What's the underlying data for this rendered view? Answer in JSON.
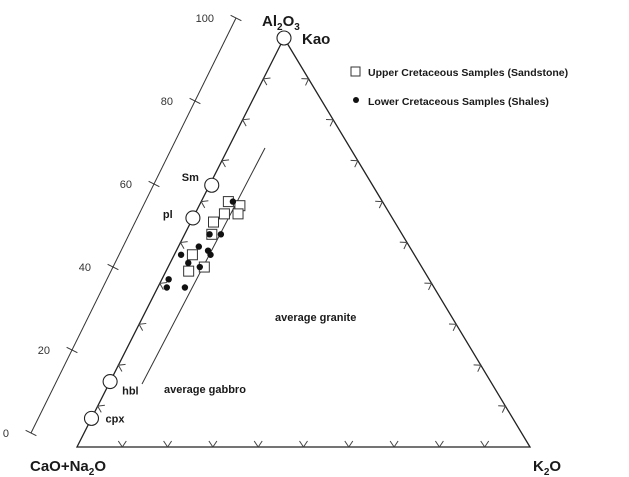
{
  "chart_data": {
    "type": "scatter",
    "vertices": {
      "top": {
        "main": "Al",
        "sub": "2",
        "tail": "O",
        "sub2": "3"
      },
      "left": {
        "main": "CaO+Na",
        "sub": "2",
        "tail": "O"
      },
      "right": {
        "main": "K",
        "sub": "2",
        "tail": "O"
      }
    },
    "scale_ticks": [
      "0",
      "20",
      "40",
      "60",
      "80",
      "100"
    ],
    "series": [
      {
        "name": "Upper Cretaceous Samples (Sandstone)",
        "marker": "open-square",
        "points": [
          {
            "al": 60,
            "k": 6
          },
          {
            "al": 59,
            "k": 9
          },
          {
            "al": 57,
            "k": 6.5
          },
          {
            "al": 57,
            "k": 9.5
          },
          {
            "al": 55,
            "k": 5
          },
          {
            "al": 52,
            "k": 6
          },
          {
            "al": 47,
            "k": 4
          },
          {
            "al": 44,
            "k": 8
          },
          {
            "al": 43,
            "k": 5
          }
        ]
      },
      {
        "name": "Lower Cretaceous Samples (Shales)",
        "marker": "filled-circle",
        "points": [
          {
            "al": 60,
            "k": 7
          },
          {
            "al": 52,
            "k": 5.5
          },
          {
            "al": 52,
            "k": 8
          },
          {
            "al": 49,
            "k": 4.5
          },
          {
            "al": 48,
            "k": 7
          },
          {
            "al": 47,
            "k": 1.5
          },
          {
            "al": 47,
            "k": 8
          },
          {
            "al": 45,
            "k": 4
          },
          {
            "al": 44,
            "k": 7
          },
          {
            "al": 41,
            "k": 1.5
          },
          {
            "al": 39,
            "k": 2
          },
          {
            "al": 39,
            "k": 6
          }
        ]
      }
    ],
    "reference_points": [
      {
        "label": "Kao",
        "al": 100,
        "k": 0
      },
      {
        "label": "Sm",
        "al": 64,
        "k": 0.5
      },
      {
        "label": "pl",
        "al": 56,
        "k": 0
      },
      {
        "label": "hbl",
        "al": 16,
        "k": 0
      },
      {
        "label": "cpx",
        "al": 7,
        "k": 0
      }
    ],
    "annotations": [
      "average granite",
      "average gabbro"
    ]
  }
}
